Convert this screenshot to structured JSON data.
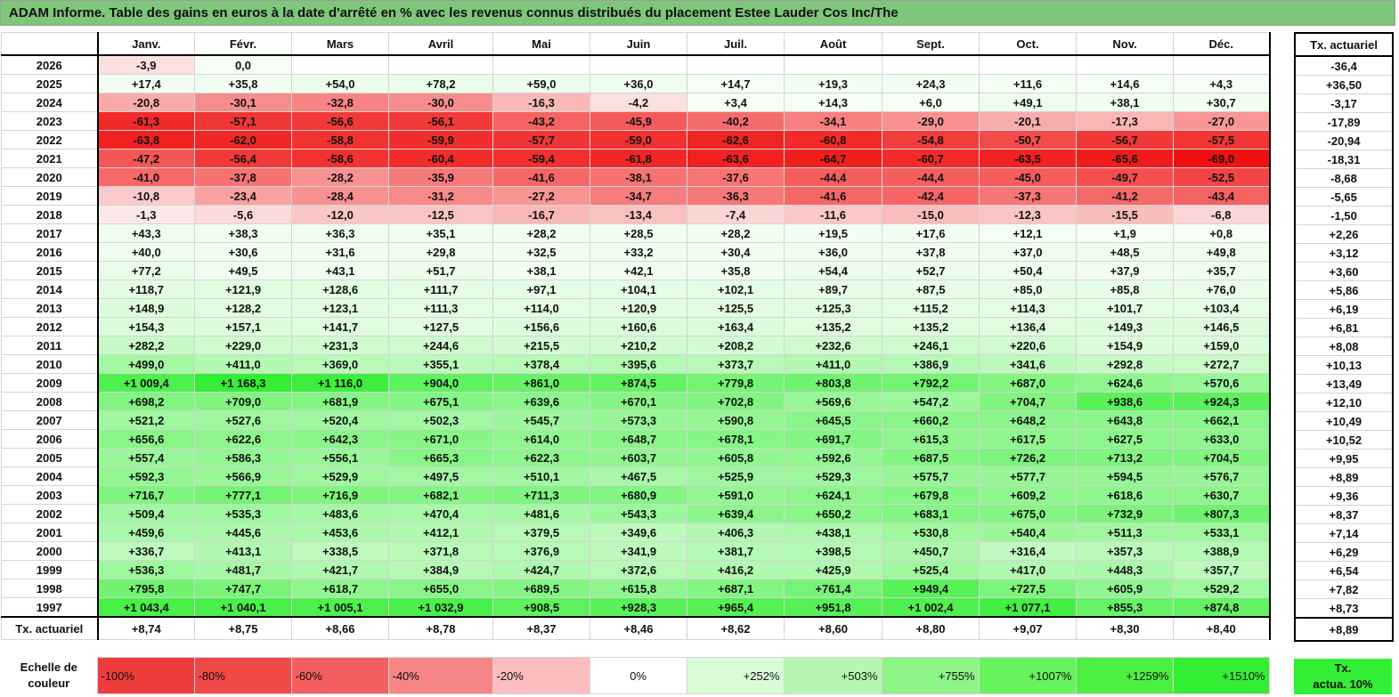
{
  "title": "ADAM Informe. Table des gains en euros à la date d'arrêté en % avec les revenus connus distribués du placement Estee Lauder Cos Inc/The",
  "months": [
    "Janv.",
    "Févr.",
    "Mars",
    "Avril",
    "Mai",
    "Juin",
    "Juil.",
    "Août",
    "Sept.",
    "Oct.",
    "Nov.",
    "Déc."
  ],
  "side_header": "Tx. actuariel",
  "rows": [
    {
      "year": "2026",
      "values": [
        "-3,9",
        "0,0",
        "",
        "",
        "",
        "",
        "",
        "",
        "",
        "",
        "",
        ""
      ],
      "tx": "-36,4"
    },
    {
      "year": "2025",
      "values": [
        "+17,4",
        "+35,8",
        "+54,0",
        "+78,2",
        "+59,0",
        "+36,0",
        "+14,7",
        "+19,3",
        "+24,3",
        "+11,6",
        "+14,6",
        "+4,3"
      ],
      "tx": "+36,50"
    },
    {
      "year": "2024",
      "values": [
        "-20,8",
        "-30,1",
        "-32,8",
        "-30,0",
        "-16,3",
        "-4,2",
        "+3,4",
        "+14,3",
        "+6,0",
        "+49,1",
        "+38,1",
        "+30,7"
      ],
      "tx": "-3,17"
    },
    {
      "year": "2023",
      "values": [
        "-61,3",
        "-57,1",
        "-56,6",
        "-56,1",
        "-43,2",
        "-45,9",
        "-40,2",
        "-34,1",
        "-29,0",
        "-20,1",
        "-17,3",
        "-27,0"
      ],
      "tx": "-17,89"
    },
    {
      "year": "2022",
      "values": [
        "-63,8",
        "-62,0",
        "-58,8",
        "-59,9",
        "-57,7",
        "-59,0",
        "-62,6",
        "-60,8",
        "-54,8",
        "-50,7",
        "-56,7",
        "-57,5"
      ],
      "tx": "-20,94"
    },
    {
      "year": "2021",
      "values": [
        "-47,2",
        "-56,4",
        "-58,6",
        "-60,4",
        "-59,4",
        "-61,8",
        "-63,6",
        "-64,7",
        "-60,7",
        "-63,5",
        "-65,6",
        "-69,0"
      ],
      "tx": "-18,31"
    },
    {
      "year": "2020",
      "values": [
        "-41,0",
        "-37,8",
        "-28,2",
        "-35,9",
        "-41,6",
        "-38,1",
        "-37,6",
        "-44,4",
        "-44,4",
        "-45,0",
        "-49,7",
        "-52,5"
      ],
      "tx": "-8,68"
    },
    {
      "year": "2019",
      "values": [
        "-10,8",
        "-23,4",
        "-28,4",
        "-31,2",
        "-27,2",
        "-34,7",
        "-36,3",
        "-41,6",
        "-42,4",
        "-37,3",
        "-41,2",
        "-43,4"
      ],
      "tx": "-5,65"
    },
    {
      "year": "2018",
      "values": [
        "-1,3",
        "-5,6",
        "-12,0",
        "-12,5",
        "-16,7",
        "-13,4",
        "-7,4",
        "-11,6",
        "-15,0",
        "-12,3",
        "-15,5",
        "-6,8"
      ],
      "tx": "-1,50"
    },
    {
      "year": "2017",
      "values": [
        "+43,3",
        "+38,3",
        "+36,3",
        "+35,1",
        "+28,2",
        "+28,5",
        "+28,2",
        "+19,5",
        "+17,6",
        "+12,1",
        "+1,9",
        "+0,8"
      ],
      "tx": "+2,26"
    },
    {
      "year": "2016",
      "values": [
        "+40,0",
        "+30,6",
        "+31,6",
        "+29,8",
        "+32,5",
        "+33,2",
        "+30,4",
        "+36,0",
        "+37,8",
        "+37,0",
        "+48,5",
        "+49,8"
      ],
      "tx": "+3,12"
    },
    {
      "year": "2015",
      "values": [
        "+77,2",
        "+49,5",
        "+43,1",
        "+51,7",
        "+38,1",
        "+42,1",
        "+35,8",
        "+54,4",
        "+52,7",
        "+50,4",
        "+37,9",
        "+35,7"
      ],
      "tx": "+3,60"
    },
    {
      "year": "2014",
      "values": [
        "+118,7",
        "+121,9",
        "+128,6",
        "+111,7",
        "+97,1",
        "+104,1",
        "+102,1",
        "+89,7",
        "+87,5",
        "+85,0",
        "+85,8",
        "+76,0"
      ],
      "tx": "+5,86"
    },
    {
      "year": "2013",
      "values": [
        "+148,9",
        "+128,2",
        "+123,1",
        "+111,3",
        "+114,0",
        "+120,9",
        "+125,5",
        "+125,3",
        "+115,2",
        "+114,3",
        "+101,7",
        "+103,4"
      ],
      "tx": "+6,19"
    },
    {
      "year": "2012",
      "values": [
        "+154,3",
        "+157,1",
        "+141,7",
        "+127,5",
        "+156,6",
        "+160,6",
        "+163,4",
        "+135,2",
        "+135,2",
        "+136,4",
        "+149,3",
        "+146,5"
      ],
      "tx": "+6,81"
    },
    {
      "year": "2011",
      "values": [
        "+282,2",
        "+229,0",
        "+231,3",
        "+244,6",
        "+215,5",
        "+210,2",
        "+208,2",
        "+232,6",
        "+246,1",
        "+220,6",
        "+154,9",
        "+159,0"
      ],
      "tx": "+8,08"
    },
    {
      "year": "2010",
      "values": [
        "+499,0",
        "+411,0",
        "+369,0",
        "+355,1",
        "+378,4",
        "+395,6",
        "+373,7",
        "+411,0",
        "+386,9",
        "+341,6",
        "+292,8",
        "+272,7"
      ],
      "tx": "+10,13"
    },
    {
      "year": "2009",
      "values": [
        "+1 009,4",
        "+1 168,3",
        "+1 116,0",
        "+904,0",
        "+861,0",
        "+874,5",
        "+779,8",
        "+803,8",
        "+792,2",
        "+687,0",
        "+624,6",
        "+570,6"
      ],
      "tx": "+13,49"
    },
    {
      "year": "2008",
      "values": [
        "+698,2",
        "+709,0",
        "+681,9",
        "+675,1",
        "+639,6",
        "+670,1",
        "+702,8",
        "+569,6",
        "+547,2",
        "+704,7",
        "+938,6",
        "+924,3"
      ],
      "tx": "+12,10"
    },
    {
      "year": "2007",
      "values": [
        "+521,2",
        "+527,6",
        "+520,4",
        "+502,3",
        "+545,7",
        "+573,3",
        "+590,8",
        "+645,5",
        "+660,2",
        "+648,2",
        "+643,8",
        "+662,1"
      ],
      "tx": "+10,49"
    },
    {
      "year": "2006",
      "values": [
        "+656,6",
        "+622,6",
        "+642,3",
        "+671,0",
        "+614,0",
        "+648,7",
        "+678,1",
        "+691,7",
        "+615,3",
        "+617,5",
        "+627,5",
        "+633,0"
      ],
      "tx": "+10,52"
    },
    {
      "year": "2005",
      "values": [
        "+557,4",
        "+586,3",
        "+556,1",
        "+665,3",
        "+622,3",
        "+603,7",
        "+605,8",
        "+592,6",
        "+687,5",
        "+726,2",
        "+713,2",
        "+704,5"
      ],
      "tx": "+9,95"
    },
    {
      "year": "2004",
      "values": [
        "+592,3",
        "+566,9",
        "+529,9",
        "+497,5",
        "+510,1",
        "+467,5",
        "+525,9",
        "+529,3",
        "+575,7",
        "+577,7",
        "+594,5",
        "+576,7"
      ],
      "tx": "+8,89"
    },
    {
      "year": "2003",
      "values": [
        "+716,7",
        "+777,1",
        "+716,9",
        "+682,1",
        "+711,3",
        "+680,9",
        "+591,0",
        "+624,1",
        "+679,8",
        "+609,2",
        "+618,6",
        "+630,7"
      ],
      "tx": "+9,36"
    },
    {
      "year": "2002",
      "values": [
        "+509,4",
        "+535,3",
        "+483,6",
        "+470,4",
        "+481,6",
        "+543,3",
        "+639,4",
        "+650,2",
        "+683,1",
        "+675,0",
        "+732,9",
        "+807,3"
      ],
      "tx": "+8,37"
    },
    {
      "year": "2001",
      "values": [
        "+459,6",
        "+445,6",
        "+453,6",
        "+412,1",
        "+379,5",
        "+349,6",
        "+406,3",
        "+438,1",
        "+530,8",
        "+540,4",
        "+511,3",
        "+533,1"
      ],
      "tx": "+7,14"
    },
    {
      "year": "2000",
      "values": [
        "+336,7",
        "+413,1",
        "+338,5",
        "+371,8",
        "+376,9",
        "+341,9",
        "+381,7",
        "+398,5",
        "+450,7",
        "+316,4",
        "+357,3",
        "+388,9"
      ],
      "tx": "+6,29"
    },
    {
      "year": "1999",
      "values": [
        "+536,3",
        "+481,7",
        "+421,7",
        "+384,9",
        "+424,7",
        "+372,6",
        "+416,2",
        "+425,9",
        "+525,4",
        "+417,0",
        "+448,3",
        "+357,7"
      ],
      "tx": "+6,54"
    },
    {
      "year": "1998",
      "values": [
        "+795,8",
        "+747,7",
        "+618,7",
        "+655,0",
        "+689,5",
        "+615,8",
        "+687,1",
        "+761,4",
        "+949,4",
        "+727,5",
        "+605,9",
        "+529,2"
      ],
      "tx": "+7,82"
    },
    {
      "year": "1997",
      "values": [
        "+1 043,4",
        "+1 040,1",
        "+1 005,1",
        "+1 032,9",
        "+908,5",
        "+928,3",
        "+965,4",
        "+951,8",
        "+1 002,4",
        "+1 077,1",
        "+855,3",
        "+874,8"
      ],
      "tx": "+8,73"
    }
  ],
  "footer": {
    "label": "Tx. actuariel",
    "values": [
      "+8,74",
      "+8,75",
      "+8,66",
      "+8,78",
      "+8,37",
      "+8,46",
      "+8,62",
      "+8,60",
      "+8,80",
      "+9,07",
      "+8,30",
      "+8,40"
    ],
    "tx": "+8,89"
  },
  "scale": {
    "label_line1": "Echelle de",
    "label_line2": "couleur",
    "items": [
      {
        "text": "-100%",
        "color": "#f03c3c"
      },
      {
        "text": "-80%",
        "color": "#f14848"
      },
      {
        "text": "-60%",
        "color": "#f35e5e"
      },
      {
        "text": "-40%",
        "color": "#f68585"
      },
      {
        "text": "-20%",
        "color": "#fbbdbd"
      },
      {
        "text": "0%",
        "color": "#ffffff"
      },
      {
        "text": "+252%",
        "color": "#d9fbd6"
      },
      {
        "text": "+503%",
        "color": "#b5f7b0"
      },
      {
        "text": "+755%",
        "color": "#8ef486"
      },
      {
        "text": "+1007%",
        "color": "#66f25c"
      },
      {
        "text": "+1259%",
        "color": "#4cf040"
      },
      {
        "text": "+1510%",
        "color": "#33ee33"
      }
    ],
    "box_line1": "Tx.",
    "box_line2": "actua. 10%"
  },
  "colors": {
    "title_bg": "#7dc67a",
    "grid": "#d4d4d4",
    "border": "#000000"
  }
}
